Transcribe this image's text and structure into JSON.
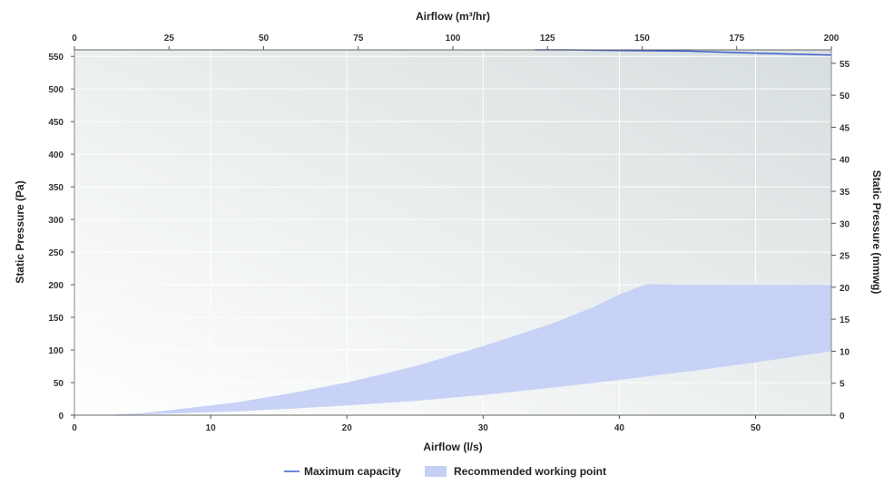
{
  "chart_data": {
    "type": "area",
    "top_xlabel": "Airflow (m³/hr)",
    "xlabel": "Airflow (l/s)",
    "ylabel_left": "Static Pressure (Pa)",
    "ylabel_right": "Static Pressure (mmwg)",
    "x_bottom_range": [
      0,
      55.56
    ],
    "x_bottom_ticks": [
      0,
      10,
      20,
      30,
      40,
      50
    ],
    "x_top_range": [
      0,
      200
    ],
    "x_top_ticks": [
      0,
      25,
      50,
      75,
      100,
      125,
      150,
      175,
      200
    ],
    "y_left_range": [
      0,
      560
    ],
    "y_left_ticks": [
      0,
      50,
      100,
      150,
      200,
      250,
      300,
      350,
      400,
      450,
      500,
      550
    ],
    "y_right_range": [
      0,
      57.1
    ],
    "y_right_ticks": [
      0,
      5,
      10,
      15,
      20,
      25,
      30,
      35,
      40,
      45,
      50,
      55
    ],
    "grid": true,
    "legend_position": "bottom-center",
    "series": [
      {
        "name": "Maximum capacity",
        "kind": "line",
        "color": "#3f5fd0",
        "x": [
          33.8,
          36,
          40,
          45,
          50,
          55.56
        ],
        "y": [
          560,
          560,
          559,
          558,
          555,
          552
        ]
      },
      {
        "name": "Recommended working point",
        "kind": "band",
        "color": "#c5d0f7",
        "upper": {
          "x": [
            2,
            5,
            8,
            12,
            16,
            20,
            25,
            30,
            35,
            38,
            40,
            42,
            45,
            50,
            55.56
          ],
          "y": [
            0,
            3,
            10,
            20,
            34,
            50,
            75,
            106,
            140,
            165,
            185,
            201,
            200,
            200,
            200
          ]
        },
        "lower": {
          "x": [
            2,
            5,
            8,
            12,
            16,
            20,
            25,
            30,
            35,
            40,
            45,
            50,
            55.56
          ],
          "y": [
            0,
            1,
            3,
            6,
            10,
            15,
            22,
            31,
            42,
            54,
            67,
            81,
            98
          ]
        }
      }
    ]
  }
}
